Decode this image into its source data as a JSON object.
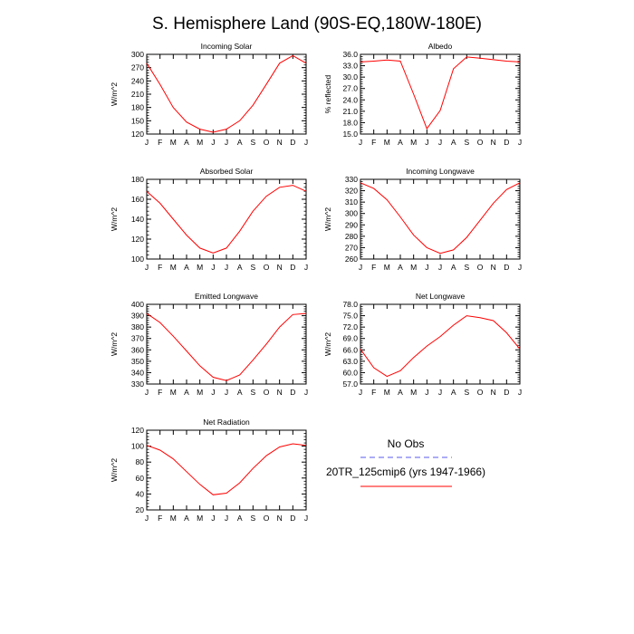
{
  "title": "S. Hemisphere Land (90S-EQ,180W-180E)",
  "months": [
    "J",
    "F",
    "M",
    "A",
    "M",
    "J",
    "J",
    "A",
    "S",
    "O",
    "N",
    "D",
    "J"
  ],
  "legend": {
    "obs_label": "No Obs",
    "model_label": "20TR_125cmip6 (yrs 1947-1966)",
    "obs_color": "#7a7af0",
    "model_color": "#ff0000"
  },
  "chart_data": [
    {
      "type": "line",
      "title": "Incoming Solar",
      "ylabel": "W/m^2",
      "ylim": [
        120,
        300
      ],
      "yticks": [
        120,
        150,
        180,
        210,
        240,
        270,
        300
      ],
      "ytick_labels": [
        "120",
        "150",
        "180",
        "210",
        "240",
        "270",
        "300"
      ],
      "x": [
        "J",
        "F",
        "M",
        "A",
        "M",
        "J",
        "J",
        "A",
        "S",
        "O",
        "N",
        "D",
        "J"
      ],
      "series": [
        {
          "values": [
            280,
            232,
            180,
            147,
            131,
            124,
            131,
            150,
            185,
            232,
            280,
            297,
            280
          ]
        }
      ]
    },
    {
      "type": "line",
      "title": "Albedo",
      "ylabel": "% reflected",
      "ylim": [
        15,
        36
      ],
      "yticks": [
        15,
        18,
        21,
        24,
        27,
        30,
        33,
        36
      ],
      "ytick_labels": [
        "15.0",
        "18.0",
        "21.0",
        "24.0",
        "27.0",
        "30.0",
        "33.0",
        "36.0"
      ],
      "x": [
        "J",
        "F",
        "M",
        "A",
        "M",
        "J",
        "J",
        "A",
        "S",
        "O",
        "N",
        "D",
        "J"
      ],
      "series": [
        {
          "values": [
            34.0,
            34.2,
            34.5,
            34.2,
            25.5,
            16.4,
            21.2,
            32.2,
            35.3,
            35.0,
            34.6,
            34.2,
            34.0
          ]
        }
      ]
    },
    {
      "type": "line",
      "title": "Absorbed Solar",
      "ylabel": "W/m^2",
      "ylim": [
        100,
        180
      ],
      "yticks": [
        100,
        120,
        140,
        160,
        180
      ],
      "ytick_labels": [
        "100",
        "120",
        "140",
        "160",
        "180"
      ],
      "x": [
        "J",
        "F",
        "M",
        "A",
        "M",
        "J",
        "J",
        "A",
        "S",
        "O",
        "N",
        "D",
        "J"
      ],
      "series": [
        {
          "values": [
            168,
            156,
            140,
            124,
            111,
            106,
            111,
            128,
            148,
            163,
            172,
            174,
            168
          ]
        }
      ]
    },
    {
      "type": "line",
      "title": "Incoming Longwave",
      "ylabel": "W/m^2",
      "ylim": [
        260,
        330
      ],
      "yticks": [
        260,
        270,
        280,
        290,
        300,
        310,
        320,
        330
      ],
      "ytick_labels": [
        "260",
        "270",
        "280",
        "290",
        "300",
        "310",
        "320",
        "330"
      ],
      "x": [
        "J",
        "F",
        "M",
        "A",
        "M",
        "J",
        "J",
        "A",
        "S",
        "O",
        "N",
        "D",
        "J"
      ],
      "series": [
        {
          "values": [
            327,
            322,
            312,
            297,
            281,
            270,
            265,
            268,
            279,
            294,
            309,
            321,
            327
          ]
        }
      ]
    },
    {
      "type": "line",
      "title": "Emitted Longwave",
      "ylabel": "W/m^2",
      "ylim": [
        330,
        400
      ],
      "yticks": [
        330,
        340,
        350,
        360,
        370,
        380,
        390,
        400
      ],
      "ytick_labels": [
        "330",
        "340",
        "350",
        "360",
        "370",
        "380",
        "390",
        "400"
      ],
      "x": [
        "J",
        "F",
        "M",
        "A",
        "M",
        "J",
        "J",
        "A",
        "S",
        "O",
        "N",
        "D",
        "J"
      ],
      "series": [
        {
          "values": [
            392,
            384,
            372,
            359,
            346,
            336,
            333,
            338,
            351,
            365,
            380,
            391,
            392
          ]
        }
      ]
    },
    {
      "type": "line",
      "title": "Net Longwave",
      "ylabel": "W/m^2",
      "ylim": [
        57,
        78
      ],
      "yticks": [
        57,
        60,
        63,
        66,
        69,
        72,
        75,
        78
      ],
      "ytick_labels": [
        "57.0",
        "60.0",
        "63.0",
        "66.0",
        "69.0",
        "72.0",
        "75.0",
        "78.0"
      ],
      "x": [
        "J",
        "F",
        "M",
        "A",
        "M",
        "J",
        "J",
        "A",
        "S",
        "O",
        "N",
        "D",
        "J"
      ],
      "series": [
        {
          "values": [
            66.2,
            61.3,
            59.0,
            60.5,
            64.0,
            67.0,
            69.5,
            72.5,
            75.0,
            74.5,
            73.7,
            70.5,
            66.2
          ]
        }
      ]
    },
    {
      "type": "line",
      "title": "Net Radiation",
      "ylabel": "W/m^2",
      "ylim": [
        20,
        120
      ],
      "yticks": [
        20,
        40,
        60,
        80,
        100,
        120
      ],
      "ytick_labels": [
        "20",
        "40",
        "60",
        "80",
        "100",
        "120"
      ],
      "x": [
        "J",
        "F",
        "M",
        "A",
        "M",
        "J",
        "J",
        "A",
        "S",
        "O",
        "N",
        "D",
        "J"
      ],
      "series": [
        {
          "values": [
            101,
            95,
            84,
            68,
            52,
            39,
            41,
            54,
            72,
            88,
            99,
            103,
            101
          ]
        }
      ]
    }
  ]
}
